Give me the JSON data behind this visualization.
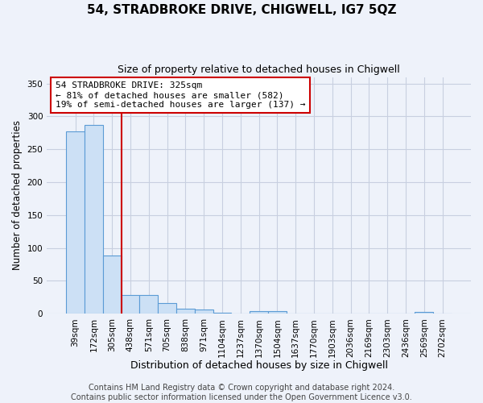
{
  "title": "54, STRADBROKE DRIVE, CHIGWELL, IG7 5QZ",
  "subtitle": "Size of property relative to detached houses in Chigwell",
  "xlabel": "Distribution of detached houses by size in Chigwell",
  "ylabel": "Number of detached properties",
  "bar_color": "#cce0f5",
  "bar_edge_color": "#5b9bd5",
  "background_color": "#eef2fa",
  "grid_color": "#c8cfe0",
  "vline_color": "#cc0000",
  "bin_labels": [
    "39sqm",
    "172sqm",
    "305sqm",
    "438sqm",
    "571sqm",
    "705sqm",
    "838sqm",
    "971sqm",
    "1104sqm",
    "1237sqm",
    "1370sqm",
    "1504sqm",
    "1637sqm",
    "1770sqm",
    "1903sqm",
    "2036sqm",
    "2169sqm",
    "2303sqm",
    "2436sqm",
    "2569sqm",
    "2702sqm"
  ],
  "bar_heights": [
    277,
    287,
    88,
    29,
    29,
    16,
    8,
    6,
    2,
    0,
    4,
    4,
    0,
    0,
    0,
    0,
    0,
    0,
    0,
    3,
    0
  ],
  "ylim": [
    0,
    360
  ],
  "yticks": [
    0,
    50,
    100,
    150,
    200,
    250,
    300,
    350
  ],
  "vline_position": 2.5,
  "annotation_text": "54 STRADBROKE DRIVE: 325sqm\n← 81% of detached houses are smaller (582)\n19% of semi-detached houses are larger (137) →",
  "annotation_box_facecolor": "#ffffff",
  "annotation_box_edgecolor": "#cc0000",
  "footer_text": "Contains HM Land Registry data © Crown copyright and database right 2024.\nContains public sector information licensed under the Open Government Licence v3.0.",
  "title_fontsize": 11,
  "subtitle_fontsize": 9,
  "xlabel_fontsize": 9,
  "ylabel_fontsize": 8.5,
  "tick_fontsize": 7.5,
  "annotation_fontsize": 8,
  "footer_fontsize": 7
}
